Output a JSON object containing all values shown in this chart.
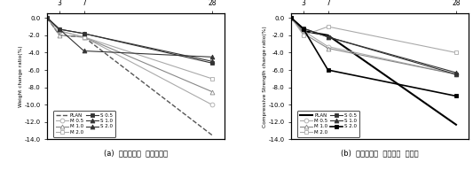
{
  "x": [
    1,
    3,
    7,
    28
  ],
  "weight_change": {
    "PLAN": [
      0.0,
      -2.0,
      -2.2,
      -13.5
    ],
    "M 0.5": [
      0.0,
      -1.5,
      -2.2,
      -10.0
    ],
    "M 1.0": [
      0.0,
      -2.0,
      -2.2,
      -8.5
    ],
    "M 2.0": [
      0.0,
      -1.5,
      -2.2,
      -7.0
    ],
    "S 0.5": [
      0.0,
      -1.3,
      -1.8,
      -5.2
    ],
    "S 1.0": [
      0.0,
      -1.3,
      -1.8,
      -5.0
    ],
    "S 2.0": [
      0.0,
      -1.3,
      -3.8,
      -4.5
    ]
  },
  "compressive_change": {
    "PLAN": [
      0.0,
      -1.5,
      -2.0,
      -12.3
    ],
    "M 0.5": [
      0.0,
      -1.5,
      -3.3,
      -6.5
    ],
    "M 1.0": [
      0.0,
      -1.8,
      -3.5,
      -6.5
    ],
    "M 2.0": [
      0.0,
      -2.0,
      -1.0,
      -4.0
    ],
    "S 0.5": [
      0.0,
      -1.2,
      -2.2,
      -6.5
    ],
    "S 1.0": [
      0.0,
      -1.2,
      -2.2,
      -6.3
    ],
    "S 2.0": [
      0.0,
      -1.3,
      -6.0,
      -9.0
    ]
  },
  "series_order": [
    "PLAN",
    "M 0.5",
    "M 1.0",
    "M 2.0",
    "S 0.5",
    "S 1.0",
    "S 2.0"
  ],
  "styles_weight": {
    "PLAN": {
      "color": "#555555",
      "linestyle": "--",
      "marker": null,
      "mfc": "black",
      "lw": 1.0
    },
    "M 0.5": {
      "color": "#aaaaaa",
      "linestyle": "-",
      "marker": "o",
      "mfc": "white",
      "lw": 0.8
    },
    "M 1.0": {
      "color": "#888888",
      "linestyle": "-",
      "marker": "^",
      "mfc": "white",
      "lw": 0.8
    },
    "M 2.0": {
      "color": "#aaaaaa",
      "linestyle": "-",
      "marker": "s",
      "mfc": "white",
      "lw": 0.8
    },
    "S 0.5": {
      "color": "#333333",
      "linestyle": "-",
      "marker": "s",
      "mfc": "#333333",
      "lw": 0.8
    },
    "S 1.0": {
      "color": "#333333",
      "linestyle": "-",
      "marker": "^",
      "mfc": "#333333",
      "lw": 0.8
    },
    "S 2.0": {
      "color": "#333333",
      "linestyle": "-",
      "marker": "^",
      "mfc": "#333333",
      "lw": 0.8
    }
  },
  "styles_comp": {
    "PLAN": {
      "color": "black",
      "linestyle": "-",
      "marker": null,
      "mfc": "black",
      "lw": 1.5
    },
    "M 0.5": {
      "color": "#aaaaaa",
      "linestyle": "-",
      "marker": "o",
      "mfc": "white",
      "lw": 0.8
    },
    "M 1.0": {
      "color": "#888888",
      "linestyle": "-",
      "marker": "^",
      "mfc": "white",
      "lw": 0.8
    },
    "M 2.0": {
      "color": "#aaaaaa",
      "linestyle": "-",
      "marker": "s",
      "mfc": "white",
      "lw": 0.8
    },
    "S 0.5": {
      "color": "#333333",
      "linestyle": "-",
      "marker": "s",
      "mfc": "#333333",
      "lw": 0.8
    },
    "S 1.0": {
      "color": "#333333",
      "linestyle": "-",
      "marker": "^",
      "mfc": "#333333",
      "lw": 0.8
    },
    "S 2.0": {
      "color": "black",
      "linestyle": "-",
      "marker": "s",
      "mfc": "black",
      "lw": 1.2
    }
  },
  "yticks": [
    0.0,
    -2.0,
    -4.0,
    -6.0,
    -8.0,
    -10.0,
    -12.0,
    -14.0
  ],
  "xticks_top": [
    3,
    7,
    28
  ],
  "xlim": [
    1,
    30
  ],
  "ylim_bottom": -14.0,
  "ylim_top": 0.5,
  "ylabel_a": "Weight change ratio(%)",
  "ylabel_b": "Compressive Strength change ratio(%)",
  "caption_a": "(a)  침지재령별  질량변화율",
  "caption_b": "(b)  침지재령별  압축강도  변화율"
}
